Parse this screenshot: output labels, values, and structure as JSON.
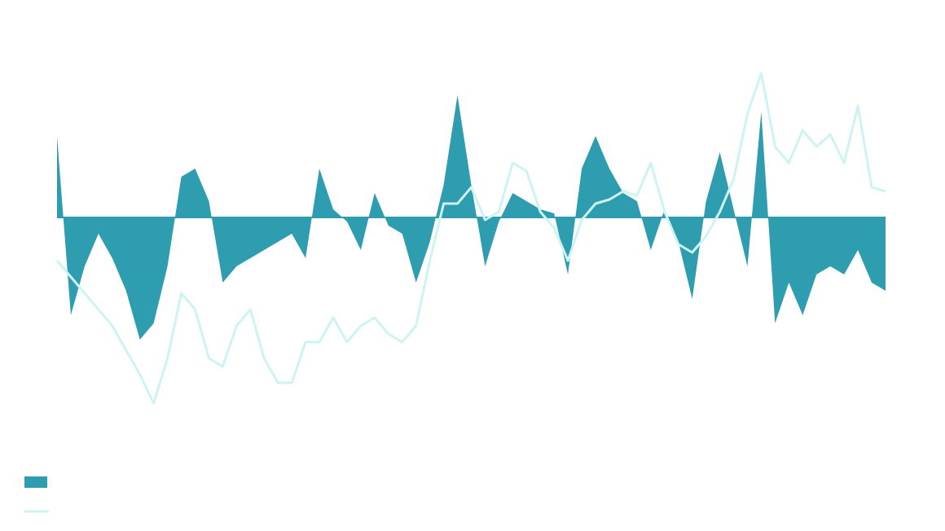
{
  "chart_data": {
    "type": "area",
    "ylim": [
      -240,
      200
    ],
    "series": [
      {
        "type": "area",
        "color": "#2e9db0",
        "values": [
          100,
          -120,
          -60,
          -20,
          -50,
          -90,
          -150,
          -130,
          -60,
          50,
          60,
          20,
          -80,
          -60,
          -50,
          -40,
          -30,
          -20,
          -50,
          60,
          10,
          -5,
          -40,
          30,
          -10,
          -20,
          -80,
          -30,
          40,
          150,
          40,
          -60,
          -5,
          30,
          20,
          10,
          5,
          -70,
          60,
          100,
          60,
          30,
          20,
          -40,
          10,
          -30,
          -100,
          20,
          80,
          10,
          -60,
          130,
          -130,
          -80,
          -120,
          -70,
          -60,
          -70,
          -40,
          -80,
          -90
        ]
      },
      {
        "type": "line",
        "color": "#cdf3f3",
        "values": [
          -53,
          -73,
          -93,
          -113,
          -133,
          -163,
          -193,
          -228,
          -173,
          -93,
          -113,
          -173,
          -183,
          -133,
          -113,
          -173,
          -203,
          -203,
          -153,
          -153,
          -123,
          -153,
          -133,
          -123,
          -143,
          -153,
          -133,
          -53,
          17,
          17,
          37,
          -3,
          7,
          67,
          57,
          7,
          -13,
          -53,
          -3,
          17,
          22,
          32,
          27,
          67,
          7,
          -33,
          -43,
          -23,
          7,
          47,
          127,
          177,
          87,
          67,
          107,
          87,
          102,
          67,
          137,
          37,
          32
        ]
      }
    ]
  }
}
